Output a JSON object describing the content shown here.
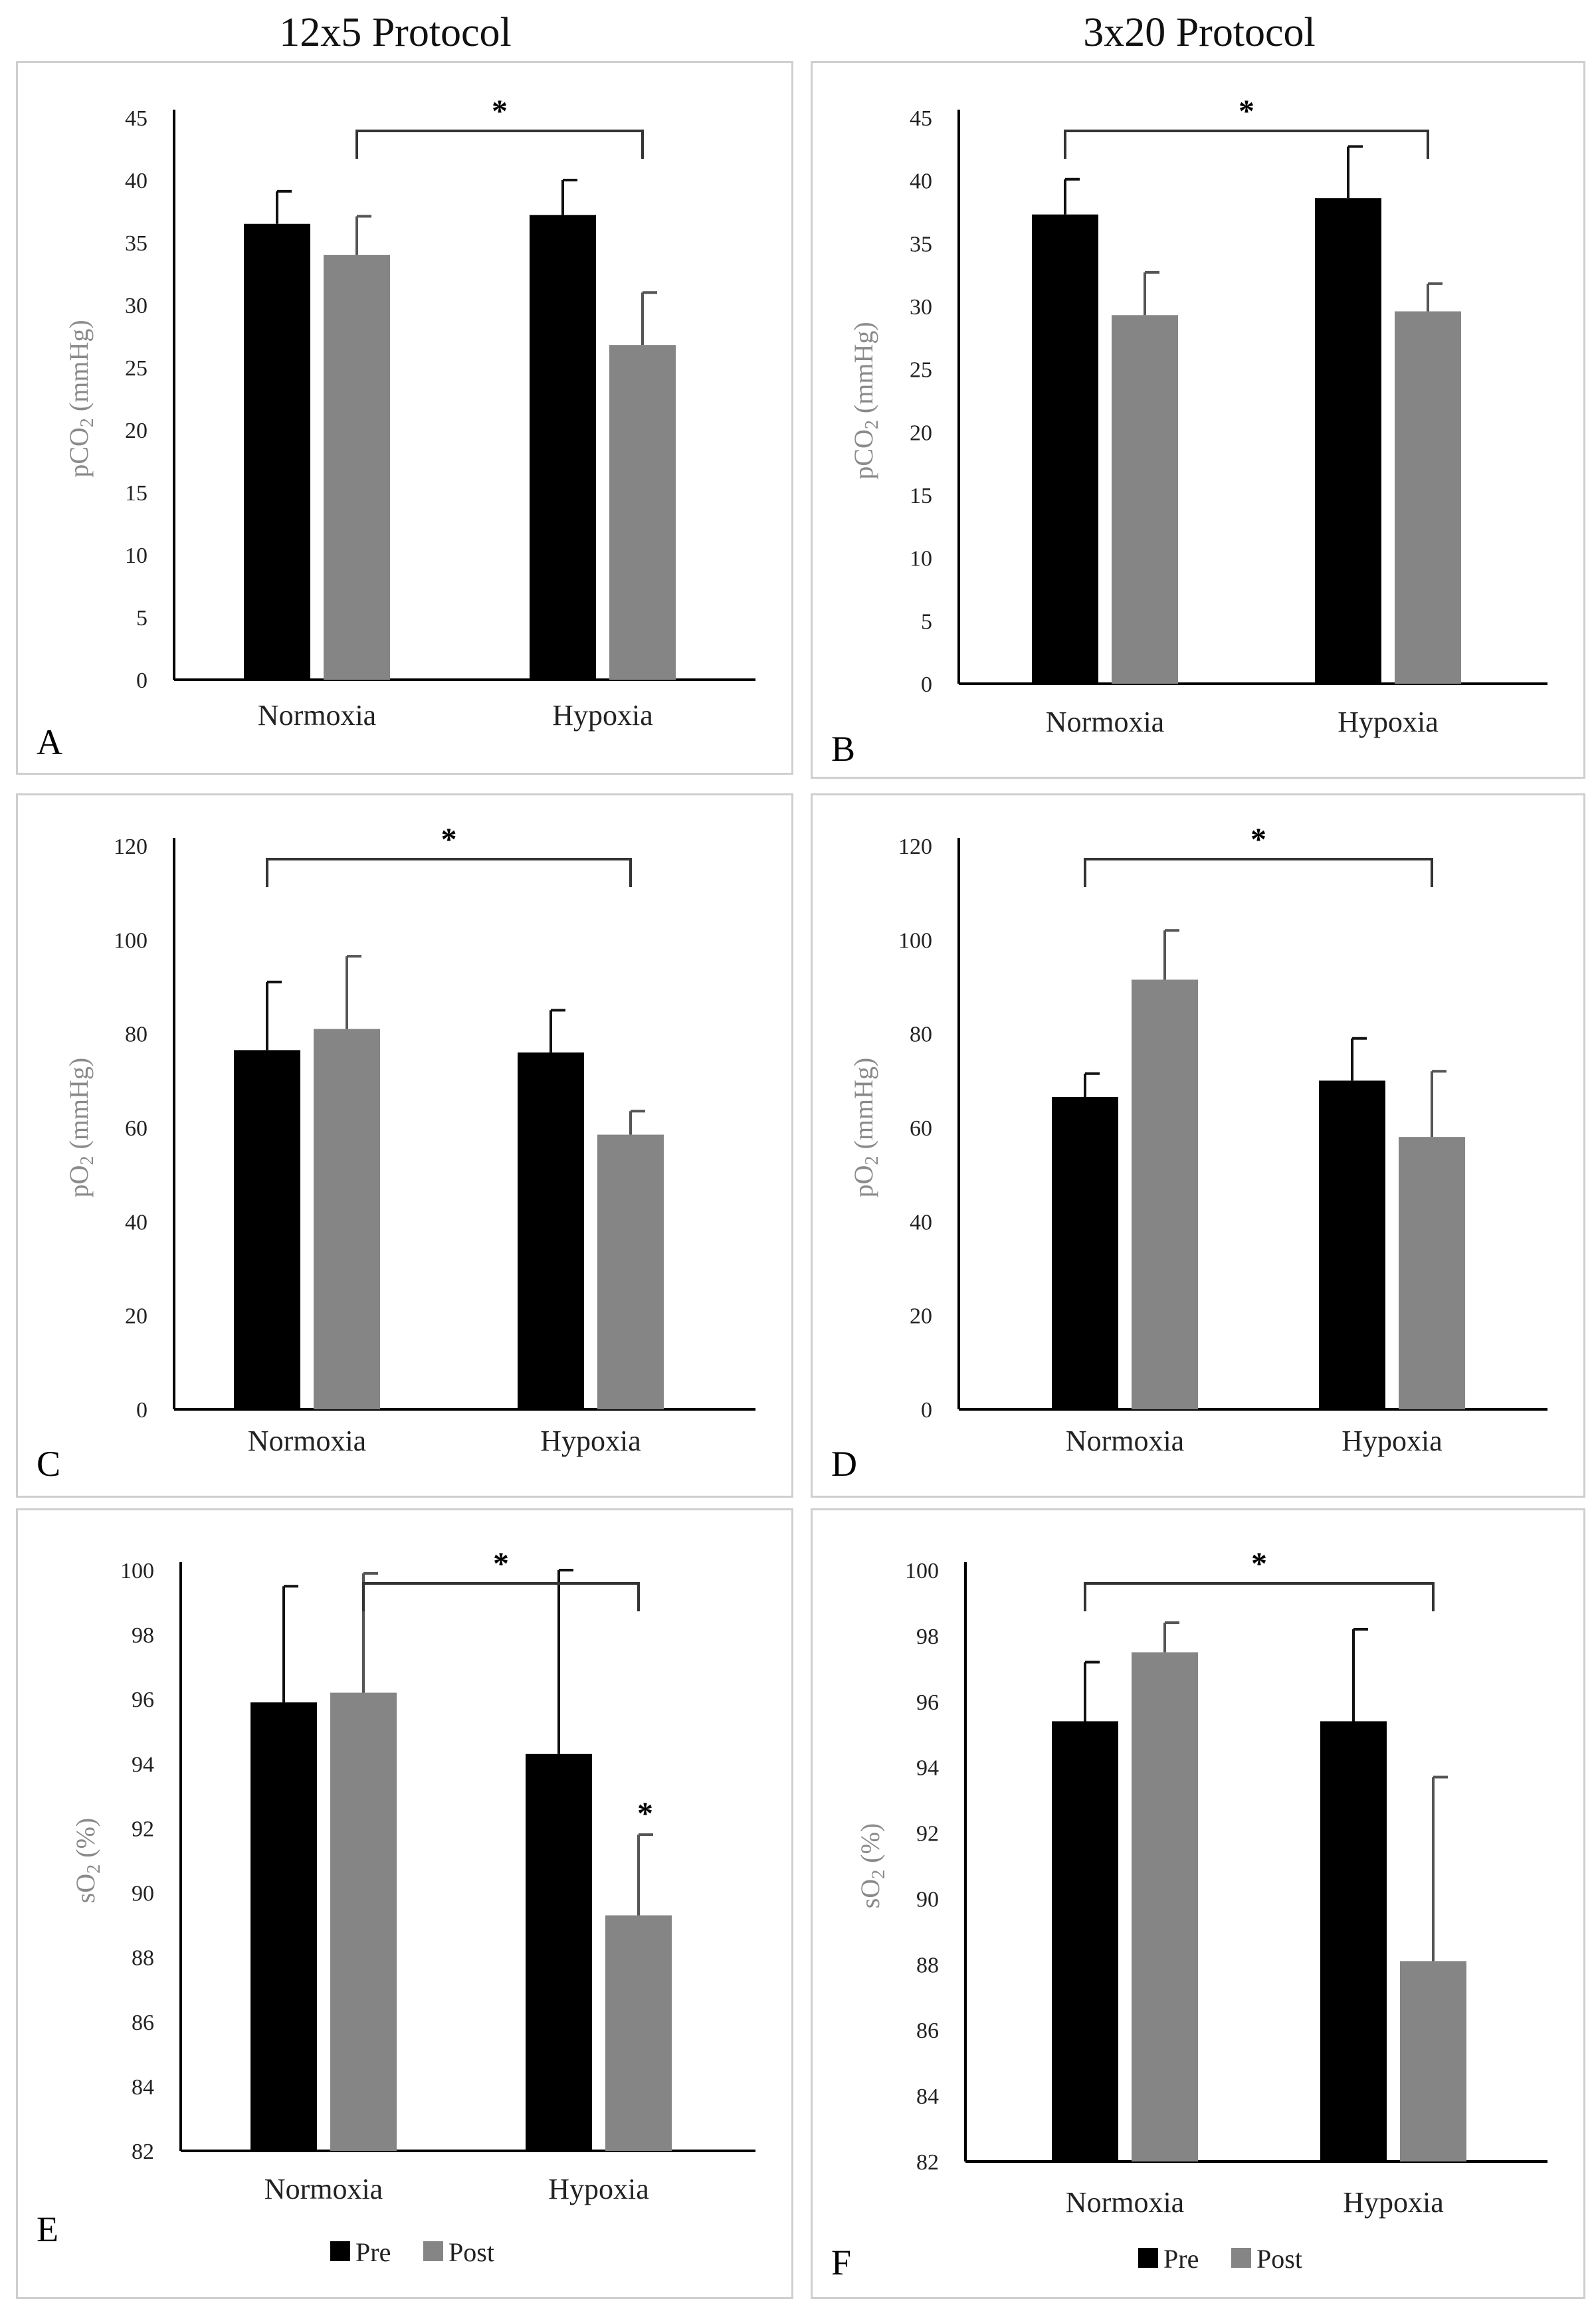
{
  "column_titles": [
    "12x5 Protocol",
    "3x20 Protocol"
  ],
  "legend_labels": {
    "pre": "Pre",
    "post": "Post"
  },
  "colors": {
    "pre": "#000000",
    "post": "#858585",
    "axis": "#000000",
    "tick_text": "#222222",
    "ylabel_text": "#8a8a8a"
  },
  "chart_data": [
    {
      "panel": "A",
      "type": "bar",
      "ylabel": "pCO",
      "ylabel_sub": "2",
      "ylabel_unit": " (mmHg)",
      "ylim": [
        0,
        45
      ],
      "yticks": [
        0,
        5,
        10,
        15,
        20,
        25,
        30,
        35,
        40,
        45
      ],
      "categories": [
        "Normoxia",
        "Hypoxia"
      ],
      "series": [
        {
          "name": "Pre",
          "values": [
            36.5,
            37.2
          ],
          "errors": [
            2.6,
            2.8
          ]
        },
        {
          "name": "Post",
          "values": [
            34.0,
            26.8
          ],
          "errors": [
            3.1,
            4.2
          ]
        }
      ],
      "significance": {
        "from": "Normoxia-Post",
        "to": "Hypoxia-Post",
        "label": "*"
      },
      "bar_marks": [],
      "legend": false
    },
    {
      "panel": "B",
      "type": "bar",
      "ylabel": "pCO",
      "ylabel_sub": "2",
      "ylabel_unit": " (mmHg)",
      "ylim": [
        0,
        45
      ],
      "yticks": [
        0,
        5,
        10,
        15,
        20,
        25,
        30,
        35,
        40,
        45
      ],
      "categories": [
        "Normoxia",
        "Hypoxia"
      ],
      "series": [
        {
          "name": "Pre",
          "values": [
            37.3,
            38.6
          ],
          "errors": [
            2.8,
            4.1
          ]
        },
        {
          "name": "Post",
          "values": [
            29.3,
            29.6
          ],
          "errors": [
            3.4,
            2.2
          ]
        }
      ],
      "significance": {
        "from": "Normoxia-Pre",
        "to": "Hypoxia-Post",
        "label": "*"
      },
      "bar_marks": [],
      "legend": false
    },
    {
      "panel": "C",
      "type": "bar",
      "ylabel": "pO",
      "ylabel_sub": "2",
      "ylabel_unit": " (mmHg)",
      "ylim": [
        0,
        120
      ],
      "yticks": [
        0,
        20,
        40,
        60,
        80,
        100,
        120
      ],
      "categories": [
        "Normoxia",
        "Hypoxia"
      ],
      "series": [
        {
          "name": "Pre",
          "values": [
            76.5,
            76.0
          ],
          "errors": [
            14.5,
            9.0
          ]
        },
        {
          "name": "Post",
          "values": [
            81.0,
            58.5
          ],
          "errors": [
            15.5,
            5.0
          ]
        }
      ],
      "significance": {
        "from": "Normoxia-Pre",
        "to": "Hypoxia-Post",
        "label": "*"
      },
      "bar_marks": [],
      "legend": false
    },
    {
      "panel": "D",
      "type": "bar",
      "ylabel": "pO",
      "ylabel_sub": "2",
      "ylabel_unit": " (mmHg)",
      "ylim": [
        0,
        120
      ],
      "yticks": [
        0,
        20,
        40,
        60,
        80,
        100,
        120
      ],
      "categories": [
        "Normoxia",
        "Hypoxia"
      ],
      "series": [
        {
          "name": "Pre",
          "values": [
            66.5,
            70.0
          ],
          "errors": [
            5.0,
            9.0
          ]
        },
        {
          "name": "Post",
          "values": [
            91.5,
            58.0
          ],
          "errors": [
            10.5,
            14.0
          ]
        }
      ],
      "significance": {
        "from": "Normoxia-Pre",
        "to": "Hypoxia-Post",
        "label": "*"
      },
      "bar_marks": [],
      "legend": false
    },
    {
      "panel": "E",
      "type": "bar",
      "ylabel": "sO",
      "ylabel_sub": "2",
      "ylabel_unit": " (%)",
      "ylim": [
        82,
        100
      ],
      "yticks": [
        82,
        84,
        86,
        88,
        90,
        92,
        94,
        96,
        98,
        100
      ],
      "categories": [
        "Normoxia",
        "Hypoxia"
      ],
      "series": [
        {
          "name": "Pre",
          "values": [
            95.9,
            94.3
          ],
          "errors": [
            3.6,
            5.7
          ]
        },
        {
          "name": "Post",
          "values": [
            96.2,
            89.3
          ],
          "errors": [
            3.7,
            2.5
          ]
        }
      ],
      "significance": {
        "from": "Normoxia-Post",
        "to": "Hypoxia-Post",
        "label": "*"
      },
      "bar_marks": [
        {
          "category": "Hypoxia",
          "series": "Post",
          "label": "*"
        }
      ],
      "legend": true
    },
    {
      "panel": "F",
      "type": "bar",
      "ylabel": "sO",
      "ylabel_sub": "2",
      "ylabel_unit": " (%)",
      "ylim": [
        82,
        100
      ],
      "yticks": [
        82,
        84,
        86,
        88,
        90,
        92,
        94,
        96,
        98,
        100
      ],
      "categories": [
        "Normoxia",
        "Hypoxia"
      ],
      "series": [
        {
          "name": "Pre",
          "values": [
            95.4,
            95.4
          ],
          "errors": [
            1.8,
            2.8
          ]
        },
        {
          "name": "Post",
          "values": [
            97.5,
            88.1
          ],
          "errors": [
            0.9,
            5.6
          ]
        }
      ],
      "significance": {
        "from": "Normoxia-Pre",
        "to": "Hypoxia-Post",
        "label": "*"
      },
      "bar_marks": [],
      "legend": true
    }
  ]
}
